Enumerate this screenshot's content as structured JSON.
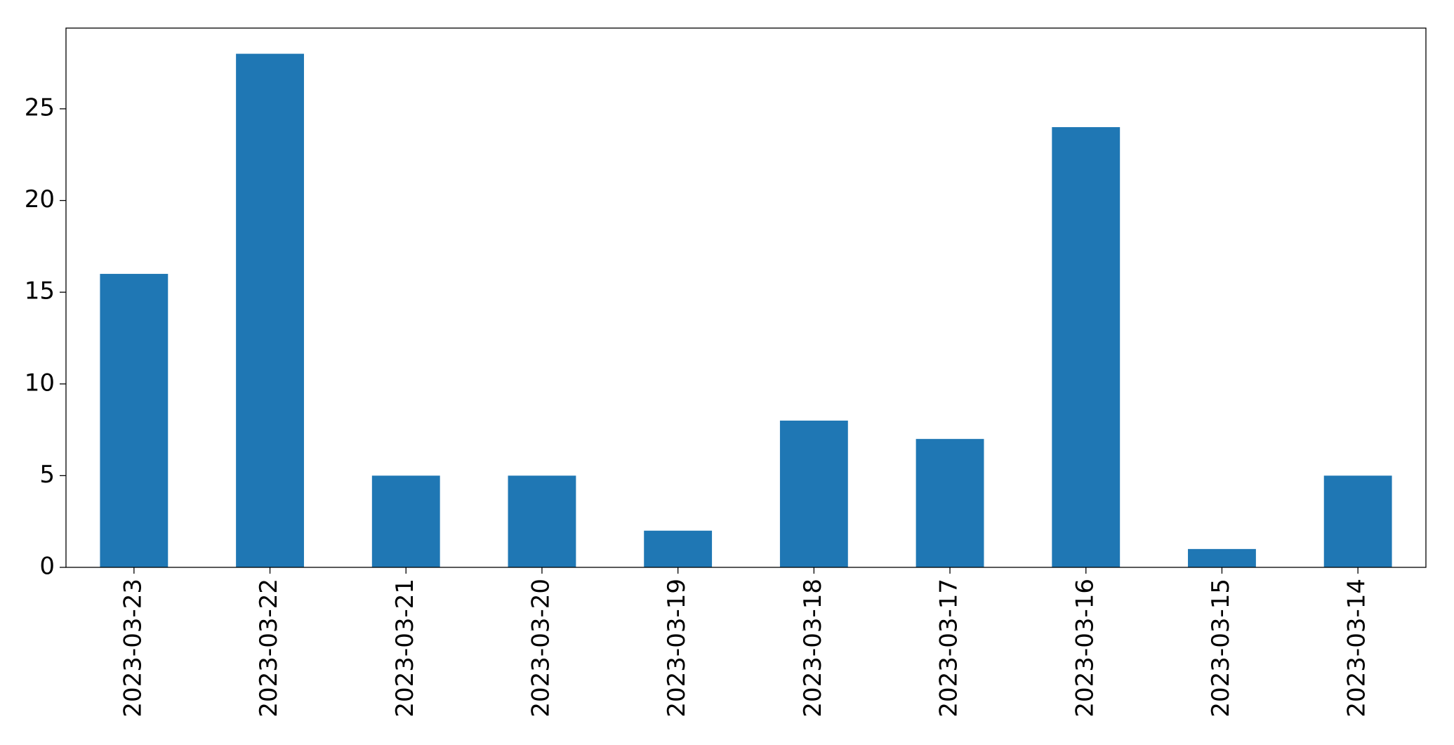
{
  "chart_data": {
    "type": "bar",
    "categories": [
      "2023-03-23",
      "2023-03-22",
      "2023-03-21",
      "2023-03-20",
      "2023-03-19",
      "2023-03-18",
      "2023-03-17",
      "2023-03-16",
      "2023-03-15",
      "2023-03-14"
    ],
    "values": [
      16,
      28,
      5,
      5,
      2,
      8,
      7,
      24,
      1,
      5
    ],
    "color": "#1f77b4",
    "ylim": [
      0,
      29.4
    ],
    "yticks": [
      0,
      5,
      10,
      15,
      20,
      25
    ],
    "grid": false
  }
}
